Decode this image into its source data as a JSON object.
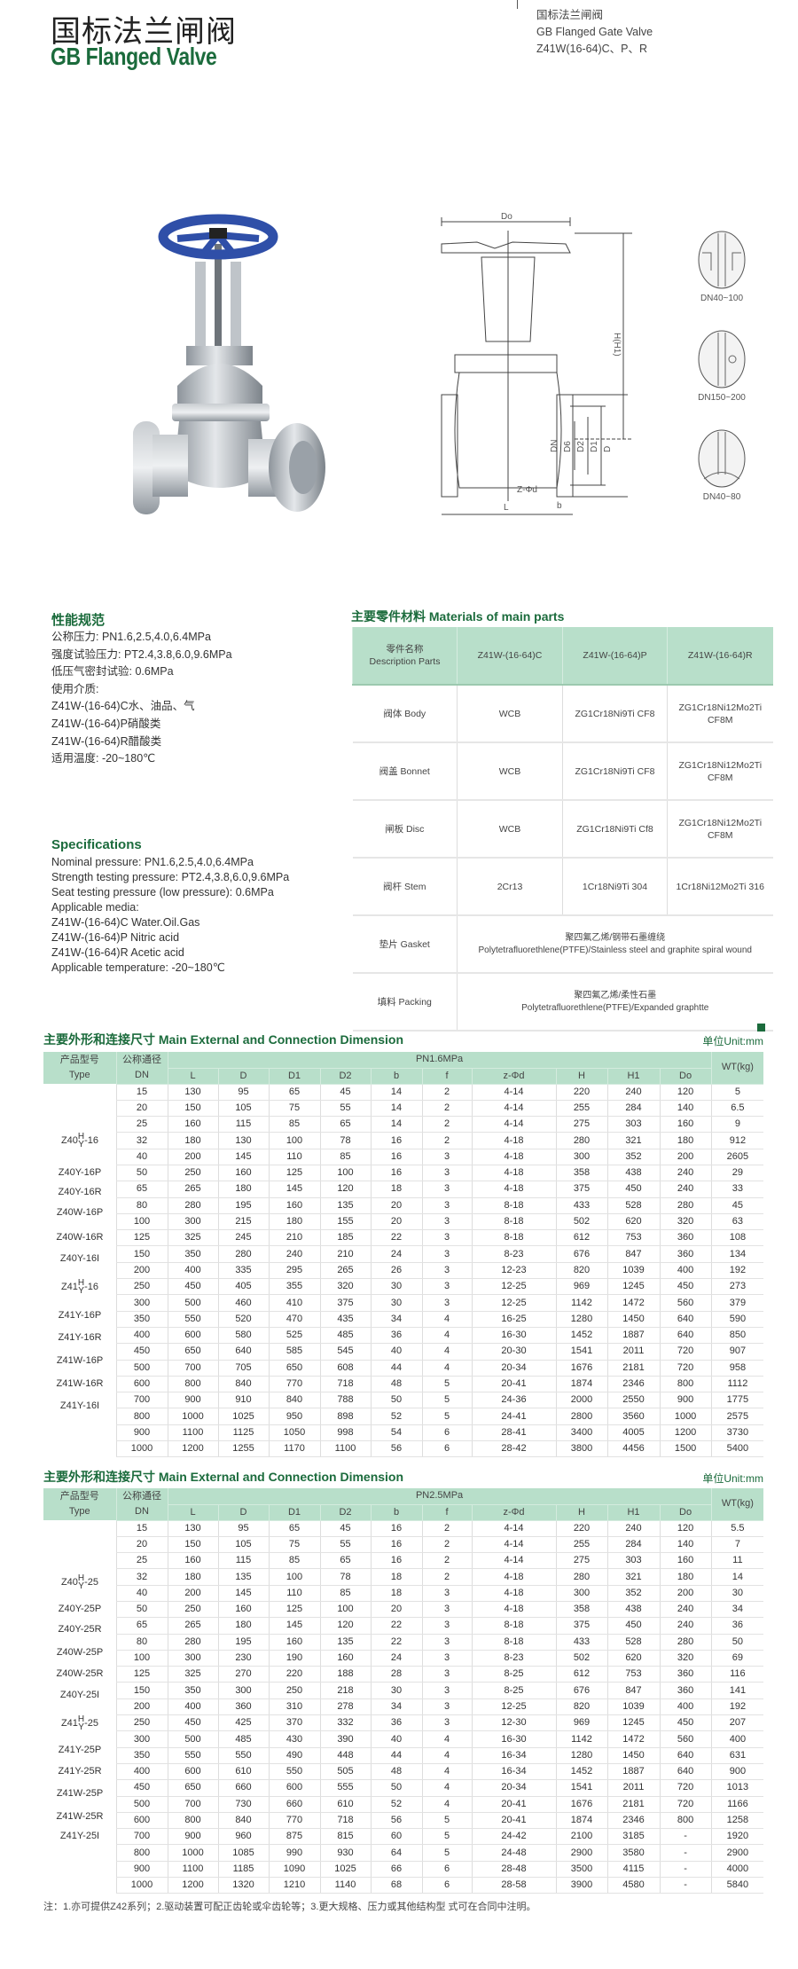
{
  "header": {
    "title_cn": "国标法兰闸阀",
    "title_en": "GB Flanged Valve",
    "side_lines": [
      "国标法兰闸阀",
      "GB Flanged Gate Valve",
      "Z41W(16-64)C、P、R"
    ]
  },
  "diagram": {
    "labels": {
      "do": "Do",
      "h": "H(H1)",
      "dn": "DN",
      "d6": "D6",
      "d2": "D2",
      "d1": "D1",
      "d": "D",
      "zd": "Z-Φd",
      "b": "b",
      "l": "L"
    },
    "details": [
      "DN40~100",
      "DN150~200",
      "DN40~80"
    ]
  },
  "performance": {
    "title": "性能规范",
    "lines": [
      "公称压力: PN1.6,2.5,4.0,6.4MPa",
      "强度试验压力: PT2.4,3.8,6.0,9.6MPa",
      "低压气密封试验: 0.6MPa",
      "使用介质:",
      "Z41W-(16-64)C水、油品、气",
      "Z41W-(16-64)P硝酸类",
      "Z41W-(16-64)R醋酸类",
      "适用温度: -20~180℃"
    ]
  },
  "specifications": {
    "title": "Specifications",
    "lines": [
      "Nominal pressure: PN1.6,2.5,4.0,6.4MPa",
      "Strength testing pressure: PT2.4,3.8,6.0,9.6MPa",
      "Seat testing pressure (low pressure): 0.6MPa",
      "Applicable media:",
      "Z41W-(16-64)C Water.Oil.Gas",
      "Z41W-(16-64)P Nitric acid",
      "Z41W-(16-64)R Acetic acid",
      "Applicable temperature: -20~180℃"
    ]
  },
  "materials": {
    "title": "主要零件材料 Materials of main parts",
    "header": {
      "parts_cn": "零件名称",
      "parts_en": "Description Parts",
      "cols": [
        "Z41W-(16-64)C",
        "Z41W-(16-64)P",
        "Z41W-(16-64)R"
      ]
    },
    "rows": [
      {
        "part": "阀体 Body",
        "vals": [
          "WCB",
          "ZG1Cr18Ni9Ti CF8",
          "ZG1Cr18Ni12Mo2Ti CF8M"
        ]
      },
      {
        "part": "阀盖 Bonnet",
        "vals": [
          "WCB",
          "ZG1Cr18Ni9Ti CF8",
          "ZG1Cr18Ni12Mo2Ti CF8M"
        ]
      },
      {
        "part": "闸板 Disc",
        "vals": [
          "WCB",
          "ZG1Cr18Ni9Ti Cf8",
          "ZG1Cr18Ni12Mo2Ti CF8M"
        ]
      },
      {
        "part": "阀杆 Stem",
        "vals": [
          "2Cr13",
          "1Cr18Ni9Ti 304",
          "1Cr18Ni12Mo2Ti 316"
        ]
      }
    ],
    "merged_rows": [
      {
        "part": "垫片 Gasket",
        "cn": "聚四氟乙烯/钢带石墨缠绕",
        "en": "Polytetrafluorethlene(PTFE)/Stainless steel and graphite spiral wound"
      },
      {
        "part": "填料 Packing",
        "cn": "聚四氟乙烯/柔性石墨",
        "en": "Polytetrafluorethlene(PTFE)/Expanded graphtte"
      }
    ]
  },
  "dim_tables": [
    {
      "title": "主要外形和连接尺寸  Main External and Connection Dimension",
      "unit": "单位Unit:mm",
      "type_cn": "产品型号",
      "type_en": "Type",
      "dn_cn": "公称通径",
      "dn_en": "DN",
      "pressure": "PN1.6MPa",
      "cols": [
        "L",
        "D",
        "D1",
        "D2",
        "b",
        "f",
        "z-Φd",
        "H",
        "H1",
        "Do"
      ],
      "wt": "WT(kg)",
      "types": [
        {
          "prefix": "Z40",
          "top": "H",
          "bottom": "Y",
          "suffix": "-16"
        },
        {
          "text": "Z40Y-16P"
        },
        {
          "text": "Z40Y-16R"
        },
        {
          "text": "Z40W-16P"
        },
        {
          "text": "Z40W-16R"
        },
        {
          "text": "Z40Y-16I"
        },
        {
          "prefix": "Z41",
          "top": "H",
          "bottom": "Y",
          "suffix": "-16"
        },
        {
          "text": "Z41Y-16P"
        },
        {
          "text": "Z41Y-16R"
        },
        {
          "text": "Z41W-16P"
        },
        {
          "text": "Z41W-16R"
        },
        {
          "text": "Z41Y-16I"
        }
      ],
      "rows": [
        [
          "15",
          "130",
          "95",
          "65",
          "45",
          "14",
          "2",
          "4-14",
          "220",
          "240",
          "120",
          "5"
        ],
        [
          "20",
          "150",
          "105",
          "75",
          "55",
          "14",
          "2",
          "4-14",
          "255",
          "284",
          "140",
          "6.5"
        ],
        [
          "25",
          "160",
          "115",
          "85",
          "65",
          "14",
          "2",
          "4-14",
          "275",
          "303",
          "160",
          "9"
        ],
        [
          "32",
          "180",
          "130",
          "100",
          "78",
          "16",
          "2",
          "4-18",
          "280",
          "321",
          "180",
          "912"
        ],
        [
          "40",
          "200",
          "145",
          "110",
          "85",
          "16",
          "3",
          "4-18",
          "300",
          "352",
          "200",
          "2605"
        ],
        [
          "50",
          "250",
          "160",
          "125",
          "100",
          "16",
          "3",
          "4-18",
          "358",
          "438",
          "240",
          "29"
        ],
        [
          "65",
          "265",
          "180",
          "145",
          "120",
          "18",
          "3",
          "4-18",
          "375",
          "450",
          "240",
          "33"
        ],
        [
          "80",
          "280",
          "195",
          "160",
          "135",
          "20",
          "3",
          "8-18",
          "433",
          "528",
          "280",
          "45"
        ],
        [
          "100",
          "300",
          "215",
          "180",
          "155",
          "20",
          "3",
          "8-18",
          "502",
          "620",
          "320",
          "63"
        ],
        [
          "125",
          "325",
          "245",
          "210",
          "185",
          "22",
          "3",
          "8-18",
          "612",
          "753",
          "360",
          "108"
        ],
        [
          "150",
          "350",
          "280",
          "240",
          "210",
          "24",
          "3",
          "8-23",
          "676",
          "847",
          "360",
          "134"
        ],
        [
          "200",
          "400",
          "335",
          "295",
          "265",
          "26",
          "3",
          "12-23",
          "820",
          "1039",
          "400",
          "192"
        ],
        [
          "250",
          "450",
          "405",
          "355",
          "320",
          "30",
          "3",
          "12-25",
          "969",
          "1245",
          "450",
          "273"
        ],
        [
          "300",
          "500",
          "460",
          "410",
          "375",
          "30",
          "3",
          "12-25",
          "1142",
          "1472",
          "560",
          "379"
        ],
        [
          "350",
          "550",
          "520",
          "470",
          "435",
          "34",
          "4",
          "16-25",
          "1280",
          "1450",
          "640",
          "590"
        ],
        [
          "400",
          "600",
          "580",
          "525",
          "485",
          "36",
          "4",
          "16-30",
          "1452",
          "1887",
          "640",
          "850"
        ],
        [
          "450",
          "650",
          "640",
          "585",
          "545",
          "40",
          "4",
          "20-30",
          "1541",
          "2011",
          "720",
          "907"
        ],
        [
          "500",
          "700",
          "705",
          "650",
          "608",
          "44",
          "4",
          "20-34",
          "1676",
          "2181",
          "720",
          "958"
        ],
        [
          "600",
          "800",
          "840",
          "770",
          "718",
          "48",
          "5",
          "20-41",
          "1874",
          "2346",
          "800",
          "1112"
        ],
        [
          "700",
          "900",
          "910",
          "840",
          "788",
          "50",
          "5",
          "24-36",
          "2000",
          "2550",
          "900",
          "1775"
        ],
        [
          "800",
          "1000",
          "1025",
          "950",
          "898",
          "52",
          "5",
          "24-41",
          "2800",
          "3560",
          "1000",
          "2575"
        ],
        [
          "900",
          "1100",
          "1125",
          "1050",
          "998",
          "54",
          "6",
          "28-41",
          "3400",
          "4005",
          "1200",
          "3730"
        ],
        [
          "1000",
          "1200",
          "1255",
          "1170",
          "1100",
          "56",
          "6",
          "28-42",
          "3800",
          "4456",
          "1500",
          "5400"
        ]
      ]
    },
    {
      "title": "主要外形和连接尺寸  Main External and Connection Dimension",
      "unit": "单位Unit:mm",
      "type_cn": "产品型号",
      "type_en": "Type",
      "dn_cn": "公称通径",
      "dn_en": "DN",
      "pressure": "PN2.5MPa",
      "cols": [
        "L",
        "D",
        "D1",
        "D2",
        "b",
        "f",
        "z-Φd",
        "H",
        "H1",
        "Do"
      ],
      "wt": "WT(kg)",
      "types": [
        {
          "prefix": "Z40",
          "top": "H",
          "bottom": "Y",
          "suffix": "-25"
        },
        {
          "text": "Z40Y-25P"
        },
        {
          "text": "Z40Y-25R"
        },
        {
          "text": "Z40W-25P"
        },
        {
          "text": "Z40W-25R"
        },
        {
          "text": "Z40Y-25I"
        },
        {
          "prefix": "Z41",
          "top": "H",
          "bottom": "Y",
          "suffix": "-25"
        },
        {
          "text": "Z41Y-25P"
        },
        {
          "text": "Z41Y-25R"
        },
        {
          "text": "Z41W-25P"
        },
        {
          "text": "Z41W-25R"
        },
        {
          "text": "Z41Y-25I"
        }
      ],
      "rows": [
        [
          "15",
          "130",
          "95",
          "65",
          "45",
          "16",
          "2",
          "4-14",
          "220",
          "240",
          "120",
          "5.5"
        ],
        [
          "20",
          "150",
          "105",
          "75",
          "55",
          "16",
          "2",
          "4-14",
          "255",
          "284",
          "140",
          "7"
        ],
        [
          "25",
          "160",
          "115",
          "85",
          "65",
          "16",
          "2",
          "4-14",
          "275",
          "303",
          "160",
          "11"
        ],
        [
          "32",
          "180",
          "135",
          "100",
          "78",
          "18",
          "2",
          "4-18",
          "280",
          "321",
          "180",
          "14"
        ],
        [
          "40",
          "200",
          "145",
          "110",
          "85",
          "18",
          "3",
          "4-18",
          "300",
          "352",
          "200",
          "30"
        ],
        [
          "50",
          "250",
          "160",
          "125",
          "100",
          "20",
          "3",
          "4-18",
          "358",
          "438",
          "240",
          "34"
        ],
        [
          "65",
          "265",
          "180",
          "145",
          "120",
          "22",
          "3",
          "8-18",
          "375",
          "450",
          "240",
          "36"
        ],
        [
          "80",
          "280",
          "195",
          "160",
          "135",
          "22",
          "3",
          "8-18",
          "433",
          "528",
          "280",
          "50"
        ],
        [
          "100",
          "300",
          "230",
          "190",
          "160",
          "24",
          "3",
          "8-23",
          "502",
          "620",
          "320",
          "69"
        ],
        [
          "125",
          "325",
          "270",
          "220",
          "188",
          "28",
          "3",
          "8-25",
          "612",
          "753",
          "360",
          "116"
        ],
        [
          "150",
          "350",
          "300",
          "250",
          "218",
          "30",
          "3",
          "8-25",
          "676",
          "847",
          "360",
          "141"
        ],
        [
          "200",
          "400",
          "360",
          "310",
          "278",
          "34",
          "3",
          "12-25",
          "820",
          "1039",
          "400",
          "192"
        ],
        [
          "250",
          "450",
          "425",
          "370",
          "332",
          "36",
          "3",
          "12-30",
          "969",
          "1245",
          "450",
          "207"
        ],
        [
          "300",
          "500",
          "485",
          "430",
          "390",
          "40",
          "4",
          "16-30",
          "1142",
          "1472",
          "560",
          "400"
        ],
        [
          "350",
          "550",
          "550",
          "490",
          "448",
          "44",
          "4",
          "16-34",
          "1280",
          "1450",
          "640",
          "631"
        ],
        [
          "400",
          "600",
          "610",
          "550",
          "505",
          "48",
          "4",
          "16-34",
          "1452",
          "1887",
          "640",
          "900"
        ],
        [
          "450",
          "650",
          "660",
          "600",
          "555",
          "50",
          "4",
          "20-34",
          "1541",
          "2011",
          "720",
          "1013"
        ],
        [
          "500",
          "700",
          "730",
          "660",
          "610",
          "52",
          "4",
          "20-41",
          "1676",
          "2181",
          "720",
          "1166"
        ],
        [
          "600",
          "800",
          "840",
          "770",
          "718",
          "56",
          "5",
          "20-41",
          "1874",
          "2346",
          "800",
          "1258"
        ],
        [
          "700",
          "900",
          "960",
          "875",
          "815",
          "60",
          "5",
          "24-42",
          "2100",
          "3185",
          "-",
          "1920"
        ],
        [
          "800",
          "1000",
          "1085",
          "990",
          "930",
          "64",
          "5",
          "24-48",
          "2900",
          "3580",
          "-",
          "2900"
        ],
        [
          "900",
          "1100",
          "1185",
          "1090",
          "1025",
          "66",
          "6",
          "28-48",
          "3500",
          "4115",
          "-",
          "4000"
        ],
        [
          "1000",
          "1200",
          "1320",
          "1210",
          "1140",
          "68",
          "6",
          "28-58",
          "3900",
          "4580",
          "-",
          "5840"
        ]
      ]
    }
  ],
  "note": "注：1.亦可提供Z42系列；2.驱动装置可配正齿轮或伞齿轮等；3.更大规格、压力或其他结构型 式可在合同中注明。",
  "colors": {
    "brand_green": "#1b6b3c",
    "header_green": "#b8dfca",
    "handwheel_blue": "#2f4fa8"
  }
}
